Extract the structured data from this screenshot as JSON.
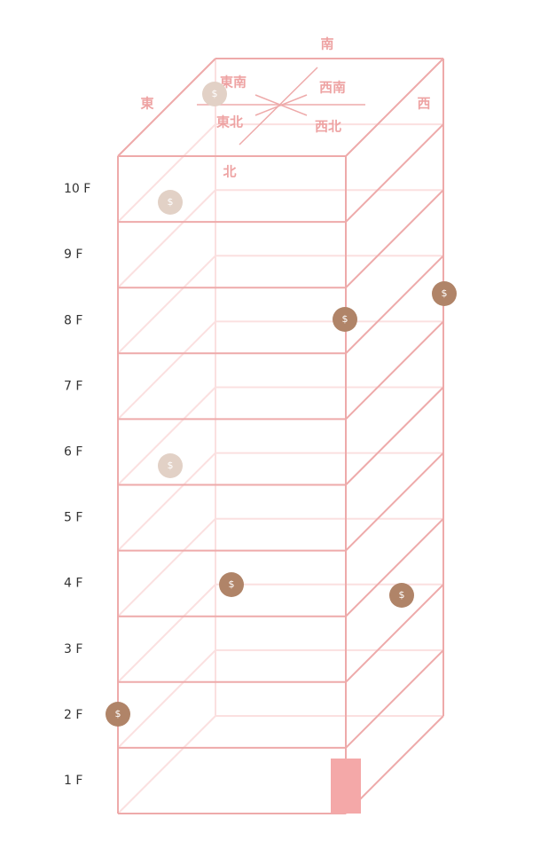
{
  "floors": [
    "10 F",
    "9 F",
    "8 F",
    "7 F",
    "6 F",
    "5 F",
    "4 F",
    "3 F",
    "2 F",
    "1 F"
  ],
  "directions": {
    "south": "南",
    "east": "東",
    "west": "西",
    "southeast": "東南",
    "southwest": "西南",
    "northeast": "東北",
    "northwest": "西北",
    "north": "北"
  },
  "coins": [
    {
      "label": "$"
    },
    {
      "label": "$"
    },
    {
      "label": "$"
    },
    {
      "label": "$"
    },
    {
      "label": "$"
    },
    {
      "label": "$"
    },
    {
      "label": "$"
    },
    {
      "label": "$"
    }
  ]
}
